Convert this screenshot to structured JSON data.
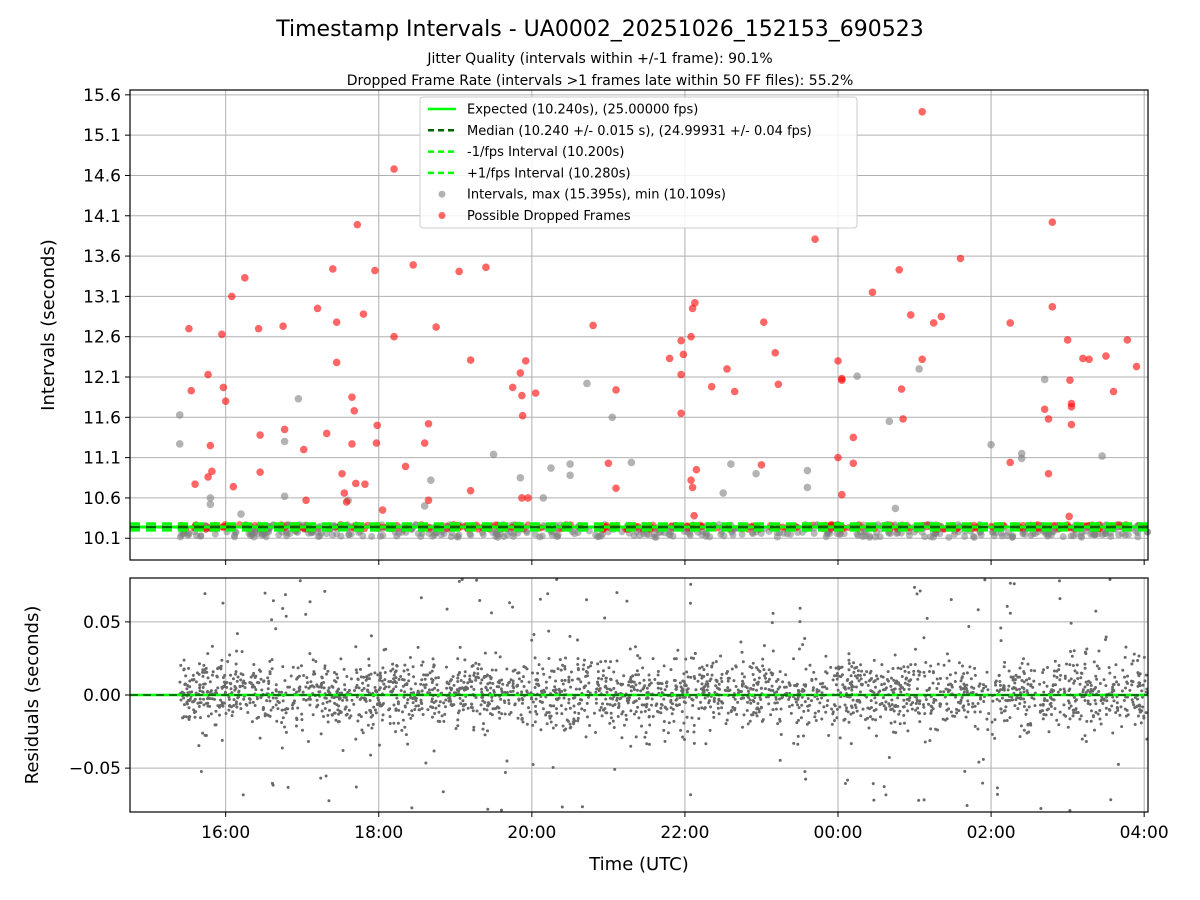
{
  "title": "Timestamp Intervals - UA0002_20251026_152153_690523",
  "subtitle_1": "Jitter Quality (intervals within +/-1 frame): 90.1%",
  "subtitle_2": "Dropped Frame Rate (intervals >1 frames late within 50 FF files): 55.2%",
  "colors": {
    "expected": "#00ff00",
    "median": "#006400",
    "fps_bounds": "#00ff00",
    "intervals": "#808080",
    "dropped": "#ff0000",
    "residuals": "#696969",
    "grid": "#b0b0b0"
  },
  "chart_data": [
    {
      "type": "scatter",
      "ylabel": "Intervals (seconds)",
      "xlim_hours": [
        14.75,
        28.05
      ],
      "ylim": [
        9.83,
        15.66
      ],
      "yticks": [
        "10.1",
        "10.6",
        "11.1",
        "11.6",
        "12.1",
        "12.6",
        "13.1",
        "13.6",
        "14.1",
        "14.6",
        "15.1",
        "15.6"
      ],
      "ytick_values": [
        10.1,
        10.6,
        11.1,
        11.6,
        12.1,
        12.6,
        13.1,
        13.6,
        14.1,
        14.6,
        15.1,
        15.6
      ],
      "grid": true,
      "legend": {
        "placement": "upper-center",
        "entries": [
          {
            "label": "Expected (10.240s), (25.00000 fps)",
            "style": "solid-line",
            "color": "#00ff00"
          },
          {
            "label": "Median (10.240 +/- 0.015 s), (24.99931 +/- 0.04 fps)",
            "style": "dashed-line",
            "color": "#006400"
          },
          {
            "label": "-1/fps Interval (10.200s)",
            "style": "dashed-line",
            "color": "#00ff00"
          },
          {
            "label": "+1/fps Interval (10.280s)",
            "style": "dashed-line",
            "color": "#00ff00"
          },
          {
            "label": "Intervals, max (15.395s), min (10.109s)",
            "style": "marker",
            "color": "#808080"
          },
          {
            "label": "Possible Dropped Frames",
            "style": "marker",
            "color": "#ff0000"
          }
        ]
      },
      "reference_lines": {
        "expected": 10.24,
        "median": 10.24,
        "lower": 10.2,
        "upper": 10.28
      },
      "series_dense": {
        "baseline_band": [
          10.21,
          10.27
        ],
        "low_band": [
          10.11,
          10.19
        ],
        "active_ranges_hours": [
          [
            15.4,
            28.05
          ]
        ]
      },
      "intervals_outliers": [
        [
          15.4,
          11.63
        ],
        [
          15.4,
          11.27
        ],
        [
          15.8,
          10.6
        ],
        [
          15.8,
          10.52
        ],
        [
          16.2,
          10.4
        ],
        [
          16.77,
          11.3
        ],
        [
          16.77,
          10.62
        ],
        [
          16.95,
          11.83
        ],
        [
          17.6,
          10.57
        ],
        [
          18.6,
          10.5
        ],
        [
          18.68,
          10.82
        ],
        [
          19.85,
          10.85
        ],
        [
          19.5,
          11.14
        ],
        [
          20.15,
          10.6
        ],
        [
          20.25,
          10.97
        ],
        [
          20.5,
          10.88
        ],
        [
          20.5,
          11.02
        ],
        [
          20.72,
          12.02
        ],
        [
          21.05,
          11.6
        ],
        [
          21.3,
          11.04
        ],
        [
          22.5,
          10.66
        ],
        [
          22.6,
          11.02
        ],
        [
          22.93,
          10.9
        ],
        [
          23.6,
          10.94
        ],
        [
          23.6,
          10.73
        ],
        [
          24.25,
          12.11
        ],
        [
          24.67,
          11.55
        ],
        [
          24.75,
          10.47
        ],
        [
          25.06,
          12.2
        ],
        [
          26.0,
          11.26
        ],
        [
          26.4,
          11.15
        ],
        [
          26.4,
          11.09
        ],
        [
          26.7,
          12.07
        ],
        [
          27.45,
          11.12
        ]
      ],
      "dropped_frames": [
        [
          15.52,
          12.7
        ],
        [
          15.55,
          11.93
        ],
        [
          15.6,
          10.77
        ],
        [
          15.77,
          12.13
        ],
        [
          15.8,
          11.25
        ],
        [
          15.82,
          10.93
        ],
        [
          15.77,
          10.86
        ],
        [
          15.95,
          12.63
        ],
        [
          15.97,
          11.97
        ],
        [
          16.0,
          11.8
        ],
        [
          16.08,
          13.1
        ],
        [
          16.1,
          10.74
        ],
        [
          16.25,
          13.33
        ],
        [
          16.43,
          12.7
        ],
        [
          16.45,
          11.38
        ],
        [
          16.45,
          10.92
        ],
        [
          16.75,
          12.73
        ],
        [
          16.77,
          11.45
        ],
        [
          17.02,
          11.2
        ],
        [
          17.05,
          10.57
        ],
        [
          17.2,
          12.95
        ],
        [
          17.32,
          11.4
        ],
        [
          17.4,
          13.44
        ],
        [
          17.45,
          12.28
        ],
        [
          17.45,
          12.78
        ],
        [
          17.52,
          10.9
        ],
        [
          17.55,
          10.66
        ],
        [
          17.58,
          10.55
        ],
        [
          17.65,
          11.85
        ],
        [
          17.65,
          11.27
        ],
        [
          17.68,
          11.68
        ],
        [
          17.7,
          10.78
        ],
        [
          17.72,
          13.99
        ],
        [
          17.8,
          12.88
        ],
        [
          17.82,
          10.77
        ],
        [
          17.95,
          13.42
        ],
        [
          17.98,
          11.5
        ],
        [
          17.97,
          11.28
        ],
        [
          18.05,
          10.45
        ],
        [
          18.2,
          14.68
        ],
        [
          18.2,
          12.6
        ],
        [
          18.35,
          10.99
        ],
        [
          18.45,
          13.49
        ],
        [
          18.6,
          11.28
        ],
        [
          18.65,
          11.52
        ],
        [
          18.65,
          10.57
        ],
        [
          18.75,
          12.72
        ],
        [
          19.05,
          13.41
        ],
        [
          19.2,
          12.31
        ],
        [
          19.2,
          10.69
        ],
        [
          19.4,
          13.46
        ],
        [
          19.75,
          11.97
        ],
        [
          19.85,
          12.15
        ],
        [
          19.87,
          11.87
        ],
        [
          19.88,
          11.62
        ],
        [
          19.87,
          10.6
        ],
        [
          19.92,
          12.3
        ],
        [
          19.95,
          10.6
        ],
        [
          20.05,
          11.9
        ],
        [
          20.8,
          12.74
        ],
        [
          21.0,
          11.03
        ],
        [
          21.1,
          11.94
        ],
        [
          21.1,
          10.72
        ],
        [
          21.8,
          12.33
        ],
        [
          21.95,
          12.55
        ],
        [
          21.95,
          12.13
        ],
        [
          21.95,
          11.65
        ],
        [
          21.98,
          12.38
        ],
        [
          22.08,
          12.6
        ],
        [
          22.1,
          12.95
        ],
        [
          22.13,
          13.02
        ],
        [
          22.08,
          10.82
        ],
        [
          22.1,
          10.73
        ],
        [
          22.12,
          10.38
        ],
        [
          22.15,
          10.95
        ],
        [
          22.35,
          11.98
        ],
        [
          22.55,
          12.2
        ],
        [
          22.65,
          11.92
        ],
        [
          23.03,
          12.78
        ],
        [
          23.0,
          11.01
        ],
        [
          23.18,
          12.4
        ],
        [
          23.22,
          12.01
        ],
        [
          23.7,
          13.81
        ],
        [
          24.0,
          11.1
        ],
        [
          24.0,
          12.3
        ],
        [
          24.05,
          12.08
        ],
        [
          24.05,
          12.06
        ],
        [
          24.05,
          10.64
        ],
        [
          24.2,
          11.35
        ],
        [
          24.2,
          11.03
        ],
        [
          24.45,
          13.15
        ],
        [
          24.8,
          13.43
        ],
        [
          24.83,
          11.95
        ],
        [
          24.85,
          11.58
        ],
        [
          24.95,
          12.87
        ],
        [
          25.1,
          15.39
        ],
        [
          25.1,
          12.32
        ],
        [
          25.25,
          12.77
        ],
        [
          25.35,
          12.85
        ],
        [
          25.6,
          13.57
        ],
        [
          26.25,
          12.77
        ],
        [
          26.25,
          11.04
        ],
        [
          26.7,
          11.7
        ],
        [
          26.75,
          11.58
        ],
        [
          26.75,
          10.9
        ],
        [
          26.8,
          14.02
        ],
        [
          26.8,
          12.97
        ],
        [
          27.0,
          12.56
        ],
        [
          27.03,
          12.06
        ],
        [
          27.05,
          11.77
        ],
        [
          27.05,
          11.73
        ],
        [
          27.05,
          11.51
        ],
        [
          27.2,
          12.33
        ],
        [
          27.28,
          12.32
        ],
        [
          27.5,
          12.36
        ],
        [
          27.6,
          11.92
        ],
        [
          27.78,
          12.56
        ],
        [
          27.9,
          12.23
        ],
        [
          27.02,
          10.37
        ]
      ]
    },
    {
      "type": "scatter",
      "xlabel": "Time (UTC)",
      "ylabel": "Residuals (seconds)",
      "xlim_hours": [
        14.75,
        28.05
      ],
      "ylim": [
        -0.08,
        0.08
      ],
      "yticks": [
        "0.05",
        "0.00",
        "−0.05"
      ],
      "ytick_values": [
        0.05,
        0.0,
        -0.05
      ],
      "xticks": [
        "16:00",
        "18:00",
        "20:00",
        "22:00",
        "00:00",
        "02:00",
        "04:00"
      ],
      "xtick_values_hours": [
        16,
        18,
        20,
        22,
        24,
        26,
        28
      ],
      "grid": true,
      "reference_line": 0.0,
      "series_dense": {
        "active_ranges_hours": [
          [
            15.4,
            28.05
          ]
        ],
        "typical_spread": 0.012,
        "max_spread": 0.08
      }
    }
  ]
}
